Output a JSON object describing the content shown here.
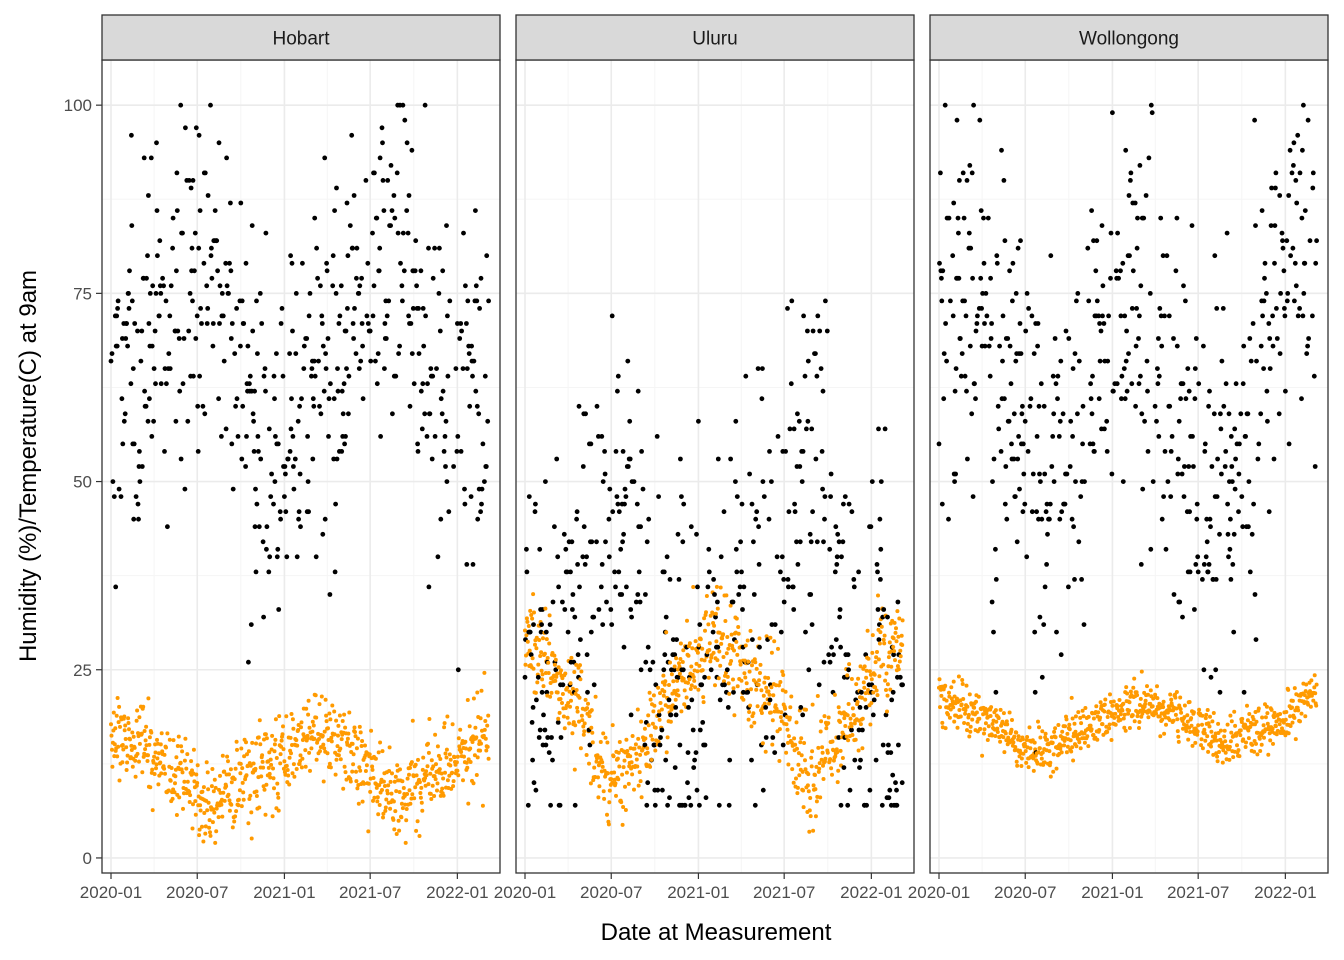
{
  "chart_data": {
    "type": "scatter",
    "facet_by": "location",
    "xlabel": "Date at Measurement",
    "ylabel": "Humidity (%)/Temperature(C) at 9am",
    "ylim": [
      -2,
      106
    ],
    "xlim": [
      "2019-12-13",
      "2022-04-01"
    ],
    "y_ticks": [
      0,
      25,
      50,
      75,
      100
    ],
    "y_tick_labels": [
      "0",
      "25",
      "50",
      "75",
      "100"
    ],
    "x_ticks": [
      "2020-01-01",
      "2020-07-01",
      "2021-01-01",
      "2021-07-01",
      "2022-01-01"
    ],
    "x_tick_labels": [
      "2020-01",
      "2020-07",
      "2021-01",
      "2021-07",
      "2022-01"
    ],
    "grid": true,
    "theme": "bw",
    "colors": {
      "humidity": "#000000",
      "temperature": "#ff9a00",
      "strip_fill": "#d9d9d9",
      "panel_border": "#333333",
      "grid_major": "#ebebeb",
      "grid_minor": "#f5f5f5"
    },
    "date_range": [
      "2020-01-01",
      "2022-03-08"
    ],
    "panels": [
      {
        "name": "Hobart",
        "humidity_profile": [
          [
            0,
            62
          ],
          [
            0.1,
            68
          ],
          [
            0.2,
            78
          ],
          [
            0.25,
            80
          ],
          [
            0.3,
            70
          ],
          [
            0.4,
            56
          ],
          [
            0.5,
            58
          ],
          [
            0.58,
            64
          ],
          [
            0.65,
            73
          ],
          [
            0.75,
            84
          ],
          [
            0.8,
            72
          ],
          [
            0.9,
            60
          ],
          [
            1.0,
            62
          ]
        ],
        "humidity_spread": 12,
        "temperature_profile": [
          [
            0,
            16
          ],
          [
            0.1,
            14
          ],
          [
            0.2,
            10
          ],
          [
            0.25,
            7
          ],
          [
            0.35,
            10
          ],
          [
            0.5,
            15
          ],
          [
            0.55,
            17
          ],
          [
            0.65,
            13
          ],
          [
            0.75,
            8
          ],
          [
            0.85,
            11
          ],
          [
            0.95,
            15
          ],
          [
            1.0,
            17
          ]
        ],
        "temperature_spread": 2.8
      },
      {
        "name": "Uluru",
        "humidity_profile": [
          [
            0,
            28
          ],
          [
            0.05,
            25
          ],
          [
            0.1,
            32
          ],
          [
            0.2,
            42
          ],
          [
            0.25,
            50
          ],
          [
            0.3,
            40
          ],
          [
            0.35,
            28
          ],
          [
            0.45,
            20
          ],
          [
            0.55,
            30
          ],
          [
            0.65,
            38
          ],
          [
            0.75,
            52
          ],
          [
            0.8,
            42
          ],
          [
            0.85,
            32
          ],
          [
            0.9,
            22
          ],
          [
            1.0,
            26
          ]
        ],
        "humidity_spread": 14,
        "temperature_profile": [
          [
            0,
            30
          ],
          [
            0.05,
            27
          ],
          [
            0.12,
            22
          ],
          [
            0.22,
            10
          ],
          [
            0.3,
            12
          ],
          [
            0.4,
            24
          ],
          [
            0.5,
            30
          ],
          [
            0.6,
            24
          ],
          [
            0.7,
            18
          ],
          [
            0.75,
            10
          ],
          [
            0.85,
            18
          ],
          [
            0.95,
            28
          ],
          [
            1.0,
            28
          ]
        ],
        "temperature_spread": 3.2
      },
      {
        "name": "Wollongong",
        "humidity_profile": [
          [
            0,
            75
          ],
          [
            0.1,
            72
          ],
          [
            0.2,
            60
          ],
          [
            0.28,
            45
          ],
          [
            0.35,
            52
          ],
          [
            0.45,
            70
          ],
          [
            0.55,
            68
          ],
          [
            0.65,
            55
          ],
          [
            0.72,
            48
          ],
          [
            0.8,
            52
          ],
          [
            0.9,
            78
          ],
          [
            1.0,
            82
          ]
        ],
        "humidity_spread": 13,
        "temperature_profile": [
          [
            0,
            21
          ],
          [
            0.1,
            19
          ],
          [
            0.2,
            16
          ],
          [
            0.25,
            14
          ],
          [
            0.35,
            16
          ],
          [
            0.45,
            19
          ],
          [
            0.55,
            21
          ],
          [
            0.65,
            19
          ],
          [
            0.75,
            15
          ],
          [
            0.85,
            17
          ],
          [
            0.95,
            20
          ],
          [
            1.0,
            22
          ]
        ],
        "temperature_spread": 1.6
      }
    ]
  }
}
